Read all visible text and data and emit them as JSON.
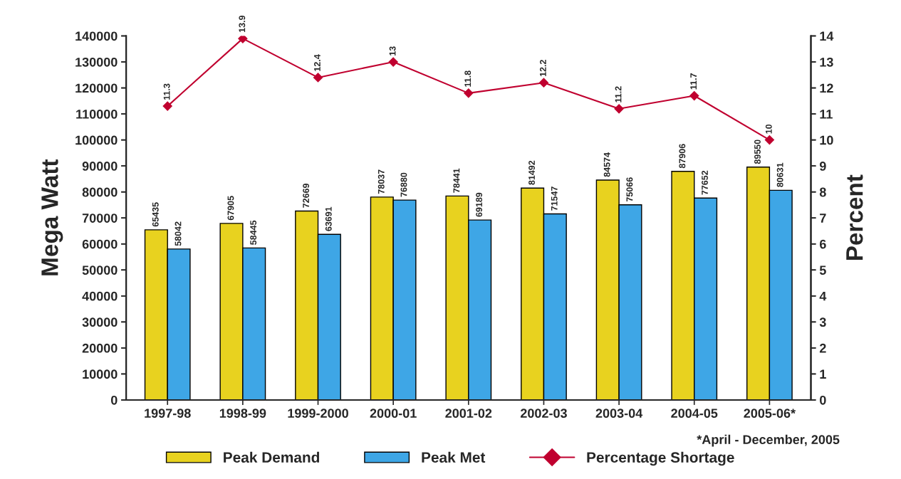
{
  "chart_data": {
    "type": "bar",
    "categories": [
      "1997-98",
      "1998-99",
      "1999-2000",
      "2000-01",
      "2001-02",
      "2002-03",
      "2003-04",
      "2004-05",
      "2005-06*"
    ],
    "series": [
      {
        "name": "Peak Demand",
        "color": "#e8d21f",
        "values": [
          65435,
          67905,
          72669,
          78037,
          78441,
          81492,
          84574,
          87906,
          89550
        ]
      },
      {
        "name": "Peak Met",
        "color": "#3ea6e6",
        "values": [
          58042,
          58445,
          63691,
          76880,
          69189,
          71547,
          75066,
          77652,
          80631
        ]
      },
      {
        "name": "Percentage Shortage",
        "type": "line",
        "axis": "y2",
        "color": "#c0002f",
        "marker": "diamond",
        "values": [
          11.3,
          13.9,
          12.4,
          13,
          11.8,
          12.2,
          11.2,
          11.7,
          10
        ]
      }
    ],
    "ylabel": "Mega Watt",
    "y2label": "Percent",
    "ylim": [
      0,
      140000
    ],
    "yticks": [
      0,
      10000,
      20000,
      30000,
      40000,
      50000,
      60000,
      70000,
      80000,
      90000,
      100000,
      110000,
      120000,
      130000,
      140000
    ],
    "y2lim": [
      0,
      14
    ],
    "y2ticks": [
      0,
      1,
      2,
      3,
      4,
      5,
      6,
      7,
      8,
      9,
      10,
      11,
      12,
      13,
      14
    ],
    "data_labels": true,
    "grid": false,
    "legend": "bottom",
    "annotations": [
      "*April - December, 2005"
    ]
  }
}
